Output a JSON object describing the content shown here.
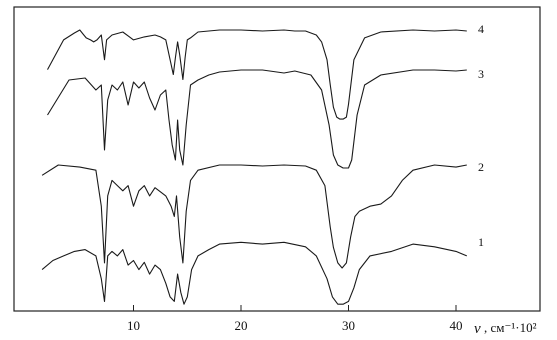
{
  "chart_data": {
    "type": "line",
    "title": "",
    "xlabel_symbol": "ν",
    "xlabel_unit": ", см⁻¹·10²",
    "ylabel": "",
    "grid": false,
    "xlim": [
      0,
      42
    ],
    "x_ticks": [
      10,
      20,
      30,
      40
    ],
    "x_tick_labels": [
      "10",
      "20",
      "30",
      "40"
    ],
    "series": [
      {
        "name": "4",
        "x": [
          2.0,
          3.5,
          4.5,
          5.0,
          5.3,
          5.6,
          6.0,
          6.3,
          6.6,
          7.0,
          7.3,
          7.5,
          7.7,
          8.0,
          9.0,
          10.0,
          11.0,
          12.0,
          12.5,
          13.0,
          13.4,
          13.7,
          13.9,
          14.1,
          14.3,
          14.6,
          14.8,
          15.0,
          15.3,
          16.0,
          18.0,
          20.0,
          22.0,
          24.0,
          25.0,
          26.0,
          27.0,
          27.5,
          28.0,
          28.3,
          28.6,
          28.9,
          29.2,
          29.5,
          29.8,
          30.0,
          30.5,
          31.5,
          33.0,
          36.0,
          38.0,
          40.0,
          41.0
        ],
        "y": [
          0.6,
          0.9,
          0.97,
          1.0,
          0.96,
          0.92,
          0.9,
          0.88,
          0.9,
          0.95,
          0.7,
          0.9,
          0.92,
          0.95,
          0.98,
          0.9,
          0.93,
          0.95,
          0.93,
          0.9,
          0.7,
          0.55,
          0.72,
          0.88,
          0.75,
          0.5,
          0.72,
          0.9,
          0.92,
          0.98,
          1.0,
          1.0,
          0.99,
          1.0,
          0.99,
          0.99,
          0.95,
          0.88,
          0.7,
          0.45,
          0.22,
          0.12,
          0.1,
          0.1,
          0.12,
          0.25,
          0.7,
          0.92,
          0.98,
          1.0,
          0.99,
          1.0,
          0.99
        ]
      },
      {
        "name": "3",
        "x": [
          2.0,
          4.0,
          5.5,
          6.5,
          7.0,
          7.3,
          7.6,
          8.0,
          8.5,
          9.0,
          9.5,
          10.0,
          10.5,
          11.0,
          11.5,
          12.0,
          12.5,
          13.0,
          13.3,
          13.6,
          13.9,
          14.1,
          14.3,
          14.6,
          14.9,
          15.3,
          16.0,
          17.0,
          18.0,
          20.0,
          22.0,
          24.0,
          25.0,
          26.5,
          27.5,
          28.2,
          28.6,
          29.0,
          29.5,
          30.0,
          30.3,
          30.8,
          31.5,
          33.0,
          36.0,
          38.0,
          40.0,
          41.0
        ],
        "y": [
          0.55,
          0.9,
          0.92,
          0.8,
          0.85,
          0.2,
          0.7,
          0.85,
          0.8,
          0.88,
          0.65,
          0.88,
          0.82,
          0.88,
          0.72,
          0.6,
          0.75,
          0.8,
          0.5,
          0.25,
          0.1,
          0.5,
          0.2,
          0.05,
          0.45,
          0.85,
          0.9,
          0.95,
          0.98,
          1.0,
          1.0,
          0.97,
          0.99,
          0.95,
          0.8,
          0.45,
          0.15,
          0.05,
          0.02,
          0.02,
          0.1,
          0.55,
          0.85,
          0.95,
          1.0,
          1.0,
          0.99,
          1.0
        ]
      },
      {
        "name": "2",
        "x": [
          1.5,
          3.0,
          5.0,
          6.5,
          7.0,
          7.3,
          7.6,
          8.0,
          8.5,
          9.0,
          9.5,
          10.0,
          10.5,
          11.0,
          11.5,
          12.0,
          13.0,
          13.5,
          13.8,
          14.0,
          14.3,
          14.6,
          14.9,
          15.3,
          16.0,
          18.0,
          20.0,
          22.0,
          24.0,
          26.0,
          27.0,
          27.8,
          28.3,
          28.6,
          29.0,
          29.4,
          29.8,
          30.2,
          30.6,
          31.0,
          32.0,
          33.0,
          34.0,
          35.0,
          36.0,
          38.0,
          40.0,
          41.0
        ],
        "y": [
          0.9,
          1.0,
          0.98,
          0.95,
          0.6,
          0.05,
          0.7,
          0.85,
          0.8,
          0.75,
          0.8,
          0.6,
          0.75,
          0.8,
          0.7,
          0.78,
          0.7,
          0.6,
          0.5,
          0.7,
          0.3,
          0.05,
          0.55,
          0.85,
          0.95,
          1.0,
          1.0,
          0.99,
          1.0,
          0.99,
          0.95,
          0.8,
          0.4,
          0.2,
          0.05,
          0.0,
          0.05,
          0.3,
          0.5,
          0.55,
          0.6,
          0.62,
          0.7,
          0.85,
          0.95,
          1.0,
          0.98,
          1.0
        ]
      },
      {
        "name": "1",
        "x": [
          1.5,
          2.5,
          3.5,
          4.5,
          5.5,
          6.5,
          7.0,
          7.3,
          7.6,
          8.0,
          8.5,
          9.0,
          9.5,
          10.0,
          10.5,
          11.0,
          11.5,
          12.0,
          12.5,
          13.0,
          13.4,
          13.8,
          14.1,
          14.4,
          14.7,
          15.0,
          15.4,
          16.0,
          17.0,
          18.0,
          20.0,
          22.0,
          24.0,
          26.0,
          27.0,
          28.0,
          28.5,
          29.0,
          29.5,
          30.0,
          30.5,
          31.0,
          32.0,
          34.0,
          36.0,
          38.0,
          40.0,
          41.0
        ],
        "y": [
          0.4,
          0.5,
          0.55,
          0.6,
          0.62,
          0.55,
          0.3,
          0.05,
          0.55,
          0.6,
          0.55,
          0.62,
          0.45,
          0.5,
          0.4,
          0.48,
          0.35,
          0.45,
          0.4,
          0.25,
          0.1,
          0.05,
          0.35,
          0.15,
          0.02,
          0.1,
          0.4,
          0.55,
          0.62,
          0.68,
          0.7,
          0.68,
          0.7,
          0.65,
          0.55,
          0.3,
          0.1,
          0.02,
          0.02,
          0.05,
          0.2,
          0.4,
          0.55,
          0.6,
          0.68,
          0.65,
          0.6,
          0.55
        ]
      }
    ]
  }
}
